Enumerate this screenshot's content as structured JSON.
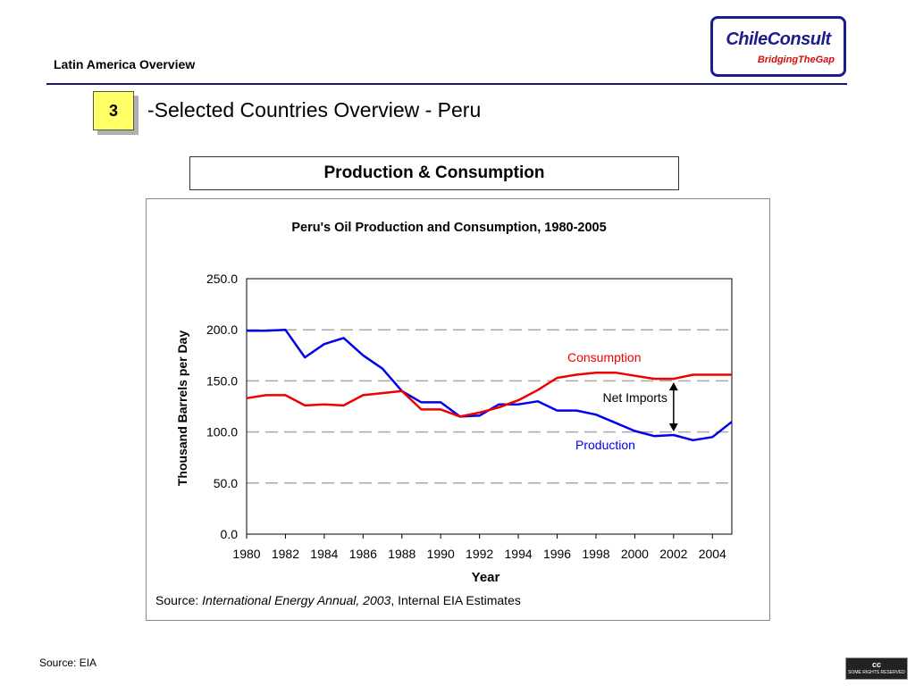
{
  "header": {
    "title": "Latin America Overview",
    "logo_name": "ChileConsult",
    "logo_tagline": "BridgingTheGap"
  },
  "section": {
    "number": "3",
    "title": "-Selected Countries Overview - Peru"
  },
  "subtitle": "Production & Consumption",
  "chart_data": {
    "type": "line",
    "title": "Peru's Oil Production and Consumption, 1980-2005",
    "xlabel": "Year",
    "ylabel": "Thousand Barrels per Day",
    "xlim": [
      1980,
      2005
    ],
    "ylim": [
      0,
      250
    ],
    "y_ticks": [
      "0.0",
      "50.0",
      "100.0",
      "150.0",
      "200.0",
      "250.0"
    ],
    "x_ticks": [
      "1980",
      "1982",
      "1984",
      "1986",
      "1988",
      "1990",
      "1992",
      "1994",
      "1996",
      "1998",
      "2000",
      "2002",
      "2004"
    ],
    "grid": "horizontal dashed",
    "x": [
      1980,
      1981,
      1982,
      1983,
      1984,
      1985,
      1986,
      1987,
      1988,
      1989,
      1990,
      1991,
      1992,
      1993,
      1994,
      1995,
      1996,
      1997,
      1998,
      1999,
      2000,
      2001,
      2002,
      2003,
      2004,
      2005
    ],
    "series": [
      {
        "name": "Production",
        "color": "#0000ee",
        "values": [
          199,
          199,
          200,
          173,
          186,
          192,
          175,
          162,
          140,
          129,
          129,
          115,
          116,
          127,
          127,
          130,
          121,
          121,
          117,
          109,
          101,
          96,
          97,
          92,
          95,
          110
        ]
      },
      {
        "name": "Consumption",
        "color": "#ee0000",
        "values": [
          133,
          136,
          136,
          126,
          127,
          126,
          136,
          138,
          140,
          122,
          122,
          115,
          119,
          124,
          131,
          141,
          153,
          156,
          158,
          158,
          155,
          152,
          152,
          156,
          156,
          156
        ]
      }
    ],
    "annotations": {
      "net_imports": "Net Imports",
      "net_imports_year": 2002,
      "source_prefix": "Source:",
      "source_italic": "International Energy Annual, 2003",
      "source_suffix": ", Internal EIA Estimates"
    }
  },
  "footer": {
    "source": "Source: EIA",
    "badge_top": "cc",
    "badge_bottom": "SOME RIGHTS RESERVED"
  }
}
